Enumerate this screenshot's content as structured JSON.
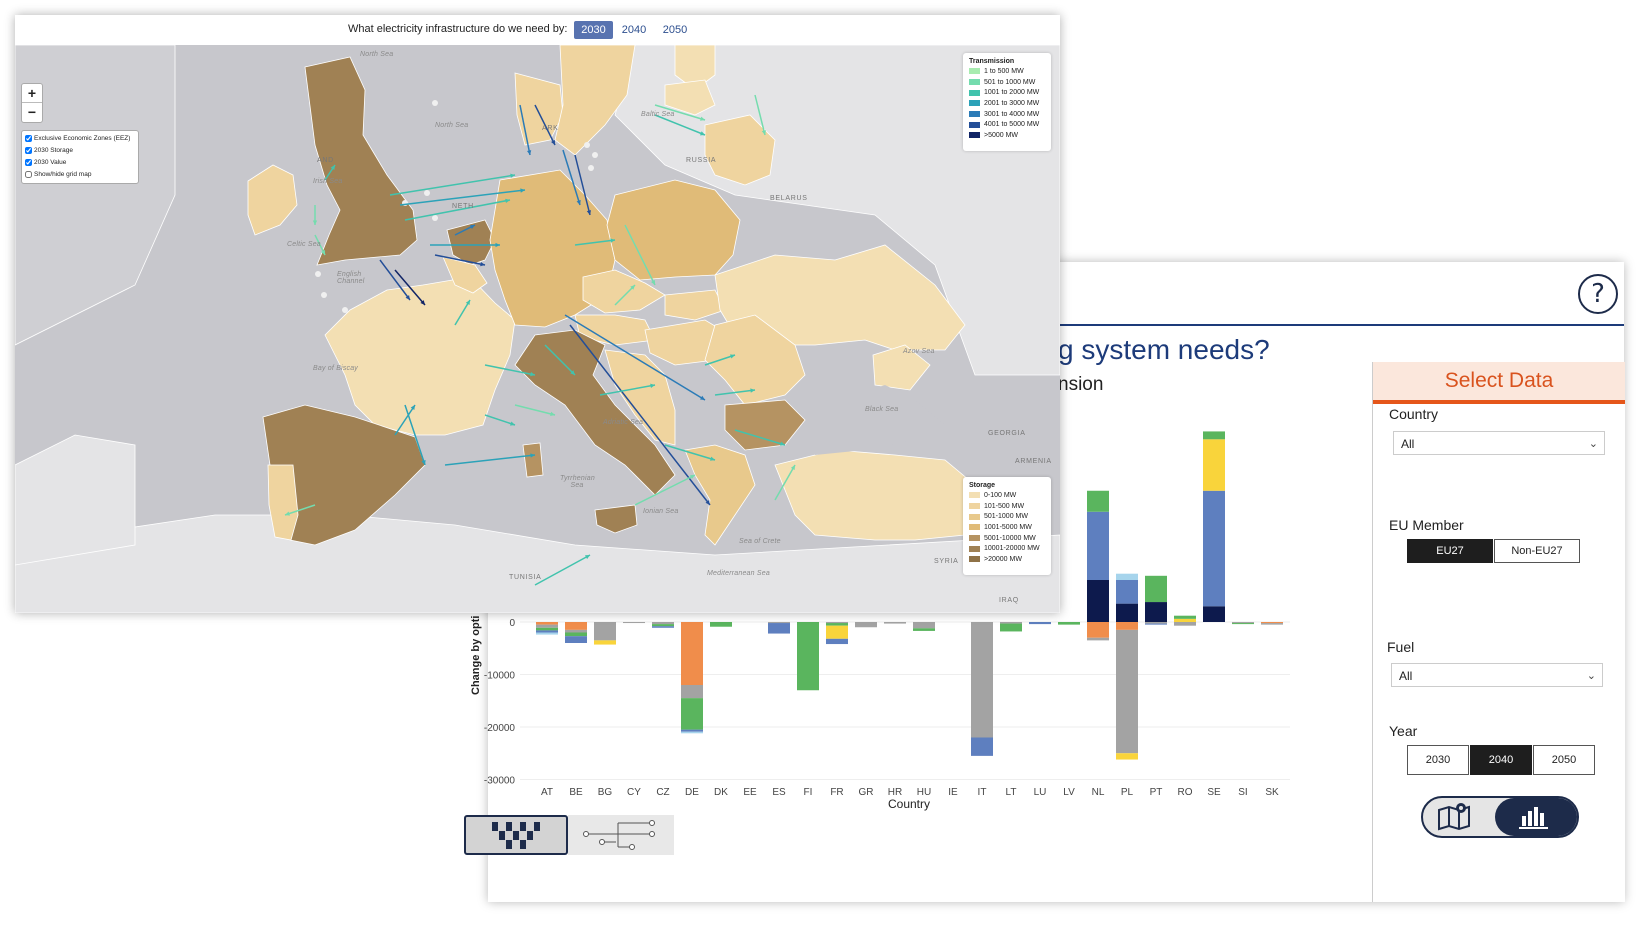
{
  "dashboard": {
    "title": "g system needs?",
    "subtitle": "nsion",
    "help_icon": "?",
    "chart_data": {
      "type": "bar",
      "stacked": true,
      "ylabel": "Change by opti",
      "xlabel": "Country",
      "ylim": [
        -30000,
        40000
      ],
      "yticks": [
        0,
        -10000,
        -20000,
        -30000
      ],
      "categories": [
        "AT",
        "BE",
        "BG",
        "CY",
        "CZ",
        "DE",
        "DK",
        "EE",
        "ES",
        "FI",
        "FR",
        "GR",
        "HR",
        "HU",
        "IE",
        "IT",
        "LT",
        "LU",
        "LV",
        "NL",
        "PL",
        "PT",
        "RO",
        "SE",
        "SI",
        "SK"
      ],
      "series": [
        {
          "color": "#f08d4b",
          "values": [
            -500,
            -1500,
            0,
            0,
            0,
            -12000,
            0,
            0,
            0,
            0,
            0,
            0,
            0,
            0,
            0,
            0,
            0,
            0,
            0,
            -3000,
            -1500,
            0,
            0,
            0,
            0,
            -200
          ]
        },
        {
          "color": "#a3a3a3",
          "values": [
            -600,
            -500,
            -3500,
            -200,
            -400,
            -2500,
            0,
            0,
            -200,
            0,
            -200,
            -1000,
            -300,
            -1200,
            0,
            -22000,
            -300,
            0,
            0,
            -500,
            -23500,
            -300,
            -700,
            0,
            -200,
            -300
          ]
        },
        {
          "color": "#5ab55e",
          "values": [
            -500,
            -700,
            0,
            0,
            -400,
            -6000,
            -900,
            0,
            0,
            -13000,
            -500,
            0,
            0,
            -500,
            0,
            0,
            -1500,
            0,
            -500,
            0,
            0,
            0,
            0,
            0,
            -200,
            0
          ]
        },
        {
          "color": "#f9d43b",
          "values": [
            0,
            0,
            -800,
            0,
            0,
            0,
            0,
            0,
            0,
            0,
            -2500,
            0,
            0,
            0,
            0,
            0,
            0,
            0,
            0,
            0,
            -1200,
            0,
            0,
            0,
            0,
            0
          ]
        },
        {
          "color": "#5e7fbf",
          "values": [
            -400,
            -1300,
            0,
            0,
            -300,
            -400,
            0,
            0,
            -2000,
            0,
            -1000,
            0,
            0,
            0,
            0,
            -3500,
            0,
            -400,
            0,
            0,
            0,
            -200,
            0,
            0,
            0,
            0
          ]
        },
        {
          "color": "#a6d4ec",
          "values": [
            -400,
            0,
            0,
            0,
            0,
            -300,
            0,
            0,
            0,
            0,
            0,
            0,
            0,
            0,
            0,
            0,
            0,
            0,
            0,
            0,
            0,
            0,
            0,
            0,
            0,
            0
          ]
        },
        {
          "color": "#0d1a4d",
          "values": [
            0,
            0,
            0,
            0,
            0,
            0,
            0,
            0,
            0,
            0,
            0,
            0,
            0,
            0,
            0,
            0,
            0,
            0,
            0,
            8000,
            3500,
            3800,
            0,
            3000,
            0,
            0
          ]
        },
        {
          "color": "#5e7fbf",
          "values": [
            0,
            0,
            0,
            0,
            0,
            0,
            0,
            0,
            0,
            0,
            0,
            0,
            0,
            0,
            0,
            0,
            0,
            0,
            0,
            13000,
            4500,
            0,
            0,
            22000,
            0,
            0
          ]
        },
        {
          "color": "#f9d43b",
          "values": [
            0,
            0,
            0,
            0,
            0,
            0,
            0,
            0,
            0,
            0,
            0,
            0,
            0,
            0,
            0,
            0,
            0,
            0,
            0,
            0,
            0,
            0,
            600,
            9800,
            0,
            0
          ]
        },
        {
          "color": "#5ab55e",
          "values": [
            0,
            0,
            0,
            0,
            0,
            0,
            0,
            0,
            0,
            0,
            0,
            0,
            0,
            0,
            0,
            0,
            0,
            0,
            0,
            4000,
            0,
            5000,
            600,
            1500,
            0,
            0
          ]
        },
        {
          "color": "#a6d4ec",
          "values": [
            0,
            0,
            0,
            0,
            0,
            0,
            0,
            0,
            0,
            0,
            0,
            0,
            0,
            0,
            0,
            0,
            0,
            0,
            0,
            0,
            1200,
            0,
            0,
            0,
            0,
            0
          ]
        }
      ]
    },
    "select": {
      "header": "Select Data",
      "country_label": "Country",
      "country_value": "All",
      "eu_label": "EU Member",
      "eu_options": [
        "EU27",
        "Non-EU27"
      ],
      "eu_selected": 0,
      "fuel_label": "Fuel",
      "fuel_value": "All",
      "year_label": "Year",
      "year_options": [
        "2030",
        "2040",
        "2050"
      ],
      "year_selected": 1
    }
  },
  "map": {
    "question": "What electricity infrastructure do we need by:",
    "years": [
      "2030",
      "2040",
      "2050"
    ],
    "year_selected": 0,
    "zoom_in": "+",
    "zoom_out": "−",
    "layers": [
      {
        "label": "Exclusive Economic Zones (EEZ)",
        "checked": true
      },
      {
        "label": "2030 Storage",
        "checked": true
      },
      {
        "label": "2030 Value",
        "checked": true
      },
      {
        "label": "Show/hide grid map",
        "checked": false
      }
    ],
    "transmission_legend": {
      "title": "Transmission",
      "items": [
        {
          "label": "1 to 500 MW",
          "color": "#a8ecb0"
        },
        {
          "label": "501 to 1000 MW",
          "color": "#74dcae"
        },
        {
          "label": "1001 to 2000 MW",
          "color": "#41c3ad"
        },
        {
          "label": "2001 to 3000 MW",
          "color": "#2ba2b8"
        },
        {
          "label": "3001 to 4000 MW",
          "color": "#2b7bb7"
        },
        {
          "label": "4001 to 5000 MW",
          "color": "#234e98"
        },
        {
          "label": ">5000 MW",
          "color": "#102466"
        }
      ]
    },
    "storage_legend": {
      "title": "Storage",
      "items": [
        {
          "label": "0-100 MW",
          "color": "#f3dfb3"
        },
        {
          "label": "101-500 MW",
          "color": "#efd49f"
        },
        {
          "label": "501-1000 MW",
          "color": "#e8c98c"
        },
        {
          "label": "1001-5000 MW",
          "color": "#e0bb78"
        },
        {
          "label": "5001-10000 MW",
          "color": "#b59362"
        },
        {
          "label": "10001-20000 MW",
          "color": "#a08154"
        },
        {
          "label": ">20000 MW",
          "color": "#8f7247"
        }
      ]
    },
    "labels": {
      "north_sea_top": "North Sea",
      "north_sea": "North Sea",
      "irish_sea": "Irish Sea",
      "celtic_sea": "Celtic Sea",
      "english_channel": "English Channel",
      "bay_of_biscay": "Bay of Biscay",
      "baltic_sea": "Baltic Sea",
      "adriatic_sea": "Adriatic Sea",
      "tyrrhenian_sea": "Tyrrhenian Sea",
      "ionian_sea": "Ionian Sea",
      "sea_of_crete": "Sea of Crete",
      "mediterranean_sea": "Mediterranean Sea",
      "black_sea": "Black Sea",
      "azov_sea": "Azov Sea",
      "russia": "RUSSIA",
      "belarus": "BELARUS",
      "georgia": "GEORGIA",
      "armenia": "ARMENIA",
      "syria": "SYRIA",
      "iraq": "IRAQ",
      "tunisia": "TUNISIA",
      "nether": "NETH",
      "denmark": "ARK",
      "ireland_hint": "AND"
    }
  }
}
